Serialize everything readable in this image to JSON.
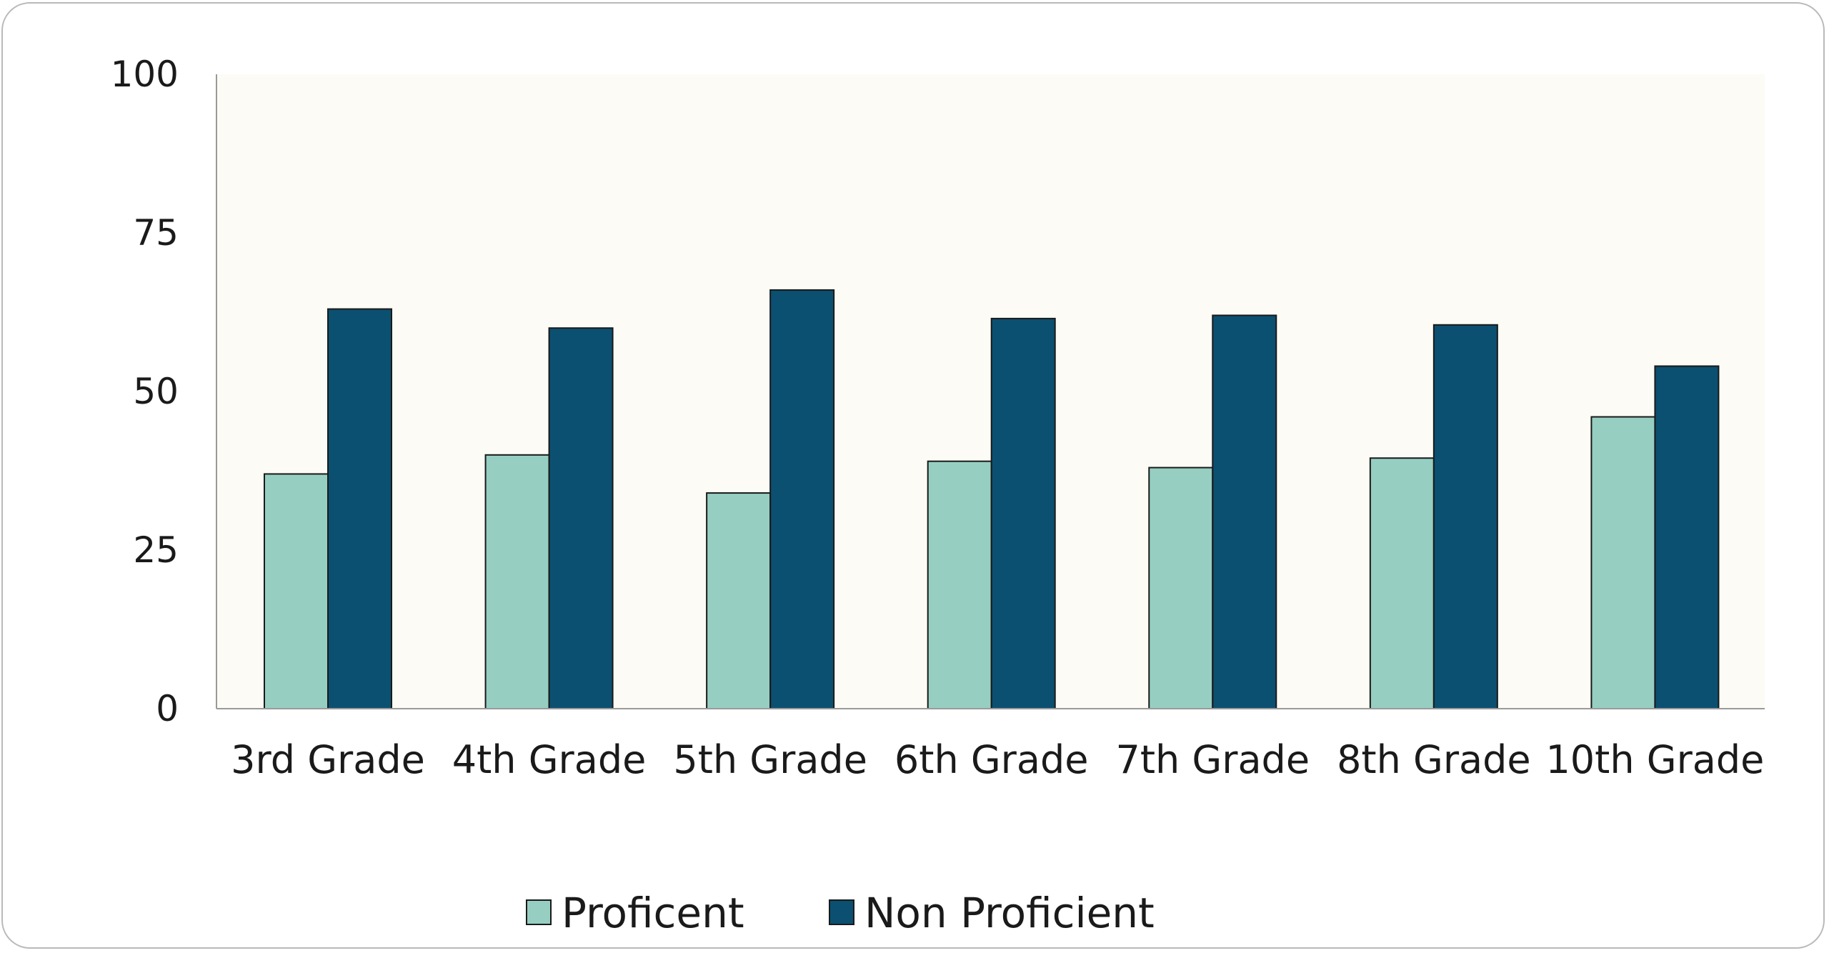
{
  "chart_data": {
    "type": "bar",
    "title": "",
    "xlabel": "",
    "ylabel": "",
    "categories": [
      "3rd Grade",
      "4th Grade",
      "5th Grade",
      "6th Grade",
      "7th Grade",
      "8th Grade",
      "10th Grade"
    ],
    "series": [
      {
        "name": "Proficent",
        "color": "#96cfc2",
        "values": [
          37,
          40,
          34,
          39,
          38,
          39.5,
          46
        ]
      },
      {
        "name": "Non Proficient",
        "color": "#0b5071",
        "values": [
          63,
          60,
          66,
          61.5,
          62,
          60.5,
          54
        ]
      }
    ],
    "ylim": [
      0,
      100
    ],
    "yticks": [
      "0",
      "25",
      "50",
      "75",
      "100"
    ],
    "grid": false,
    "legend": "bottom",
    "plot_background": "#fcfbf5"
  }
}
